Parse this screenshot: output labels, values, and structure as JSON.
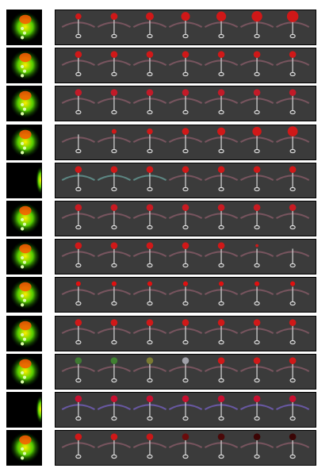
{
  "figure": {
    "rows": [
      {
        "thumb": "heatmap-a",
        "variant": "progressive-grow",
        "arc": "#7a5560",
        "ball": "#d01818"
      },
      {
        "thumb": "heatmap-b",
        "variant": "steady",
        "arc": "#7a5560",
        "ball": "#d01818"
      },
      {
        "thumb": "heatmap-c",
        "variant": "steady",
        "arc": "#7a5560",
        "ball": "#c21a28"
      },
      {
        "thumb": "heatmap-d",
        "variant": "emerging",
        "arc": "#7a5560",
        "ball": "#d01818"
      },
      {
        "thumb": "edge-e",
        "variant": "teal-arc",
        "arc": "#5e8a86",
        "ball": "#d01818"
      },
      {
        "thumb": "heatmap-f",
        "variant": "steady",
        "arc": "#7a5560",
        "ball": "#c81b22"
      },
      {
        "thumb": "heatmap-g",
        "variant": "fading",
        "arc": "#7a5560",
        "ball": "#d01818"
      },
      {
        "thumb": "heatmap-h",
        "variant": "small",
        "arc": "#7a5560",
        "ball": "#e01010"
      },
      {
        "thumb": "heatmap-i",
        "variant": "steady",
        "arc": "#7a5560",
        "ball": "#d01818"
      },
      {
        "thumb": "heatmap-j",
        "variant": "color-shift",
        "arc": "#7a5560",
        "ball": "#d01818"
      },
      {
        "thumb": "edge-k",
        "variant": "purple-arc",
        "arc": "#6a5aa8",
        "ball": "#c81030"
      },
      {
        "thumb": "heatmap-l",
        "variant": "darkening",
        "arc": "#7a5560",
        "ball": "#d01818"
      }
    ],
    "frames_per_row": 7
  }
}
